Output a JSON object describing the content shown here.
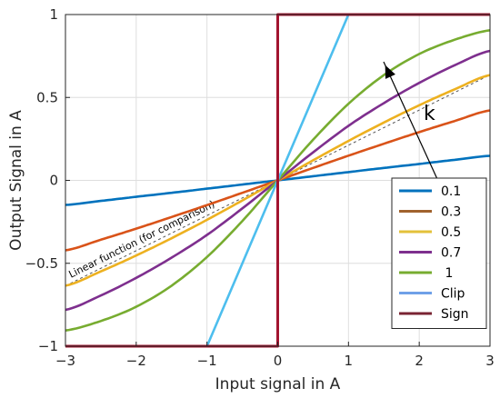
{
  "chart_data": {
    "type": "line",
    "title": "",
    "xlabel": "Input signal in A",
    "ylabel": "Output Signal in A",
    "xlim": [
      -3,
      3
    ],
    "ylim": [
      -1,
      1
    ],
    "grid": true,
    "legend_position": "bottom-right",
    "x_ticks": [
      -3,
      -2,
      -1,
      0,
      1,
      2,
      3
    ],
    "x_tick_labels": [
      "−3",
      "−2",
      "−1",
      "0",
      "1",
      "2",
      "3"
    ],
    "y_ticks": [
      -1,
      -0.5,
      0,
      0.5,
      1
    ],
    "y_tick_labels": [
      "−1",
      "−0.5",
      "0",
      "0.5",
      "1"
    ],
    "x": [
      -3,
      -2.5,
      -2,
      -1.5,
      -1,
      -0.5,
      0,
      0.5,
      1,
      1.5,
      2,
      2.5,
      3
    ],
    "series": [
      {
        "name": "0.1",
        "color": "#0072bd",
        "values": [
          -0.148,
          -0.124,
          -0.099,
          -0.075,
          -0.05,
          -0.025,
          0,
          0.025,
          0.05,
          0.075,
          0.099,
          0.124,
          0.148
        ]
      },
      {
        "name": "0.3",
        "color": "#d95319",
        "values": [
          -0.422,
          -0.358,
          -0.291,
          -0.221,
          -0.149,
          -0.075,
          0,
          0.075,
          0.149,
          0.221,
          0.291,
          0.358,
          0.422
        ]
      },
      {
        "name": "0.5",
        "color": "#edb120",
        "values": [
          -0.635,
          -0.549,
          -0.453,
          -0.349,
          -0.238,
          -0.121,
          0,
          0.121,
          0.238,
          0.349,
          0.453,
          0.549,
          0.635
        ]
      },
      {
        "name": "0.7",
        "color": "#7e2f8e",
        "values": [
          -0.781,
          -0.694,
          -0.588,
          -0.466,
          -0.329,
          -0.169,
          0,
          0.169,
          0.329,
          0.466,
          0.588,
          0.694,
          0.781
        ]
      },
      {
        "name": "1",
        "color": "#77ac30",
        "values": [
          -0.905,
          -0.848,
          -0.762,
          -0.635,
          -0.462,
          -0.245,
          0,
          0.245,
          0.462,
          0.635,
          0.762,
          0.848,
          0.905
        ]
      },
      {
        "name": "Clip",
        "color": "#4dbeee",
        "values": [
          -1,
          -1,
          -1,
          -1,
          -1,
          -0.5,
          0,
          0.5,
          1,
          1,
          1,
          1,
          1
        ]
      },
      {
        "name": "Sign",
        "color": "#a2142f",
        "values": [
          -1,
          -1,
          -1,
          -1,
          -1,
          -1,
          0,
          1,
          1,
          1,
          1,
          1,
          1
        ]
      }
    ],
    "legend": {
      "items": [
        {
          "label": "0.1",
          "color": "#0072bd"
        },
        {
          "label": "0.3",
          "color": "#a0622d"
        },
        {
          "label": "0.5",
          "color": "#e3c13a"
        },
        {
          "label": "0.7",
          "color": "#7e2f8e"
        },
        {
          "label": " 1",
          "color": "#77ac30"
        },
        {
          "label": "Clip",
          "color": "#6fa0e8"
        },
        {
          "label": "Sign",
          "color": "#7a2433"
        }
      ]
    },
    "reference_line": {
      "label": "Linear function (for comparison)",
      "x": [
        -3,
        3
      ],
      "y": [
        -0.636,
        0.636
      ]
    },
    "arrow_label": "k"
  }
}
